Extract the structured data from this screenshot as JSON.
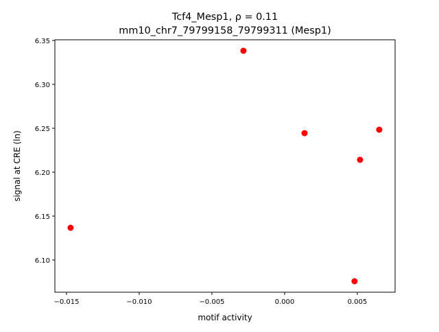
{
  "chart_data": {
    "type": "scatter",
    "title_line1": "Tcf4_Mesp1, ρ = 0.11",
    "title_line2": "mm10_chr7_79799158_79799311 (Mesp1)",
    "xlabel": "motif activity",
    "ylabel": "signal at CRE (ln)",
    "xlim": [
      -0.0158,
      0.0076
    ],
    "ylim": [
      6.0633,
      6.3508
    ],
    "xticks": [
      -0.015,
      -0.01,
      -0.005,
      0.0,
      0.005
    ],
    "xtick_labels": [
      "−0.015",
      "−0.010",
      "−0.005",
      "0.000",
      "0.005"
    ],
    "yticks": [
      6.1,
      6.15,
      6.2,
      6.25,
      6.3,
      6.35
    ],
    "ytick_labels": [
      "6.10",
      "6.15",
      "6.20",
      "6.25",
      "6.30",
      "6.35"
    ],
    "grid": false,
    "point_color": "#ff0000",
    "points": [
      {
        "x": -0.01472,
        "y": 6.1367
      },
      {
        "x": -0.00283,
        "y": 6.3383
      },
      {
        "x": 0.00137,
        "y": 6.2445
      },
      {
        "x": 0.00519,
        "y": 6.2141
      },
      {
        "x": 0.00651,
        "y": 6.2484
      },
      {
        "x": 0.00481,
        "y": 6.0758
      }
    ]
  }
}
